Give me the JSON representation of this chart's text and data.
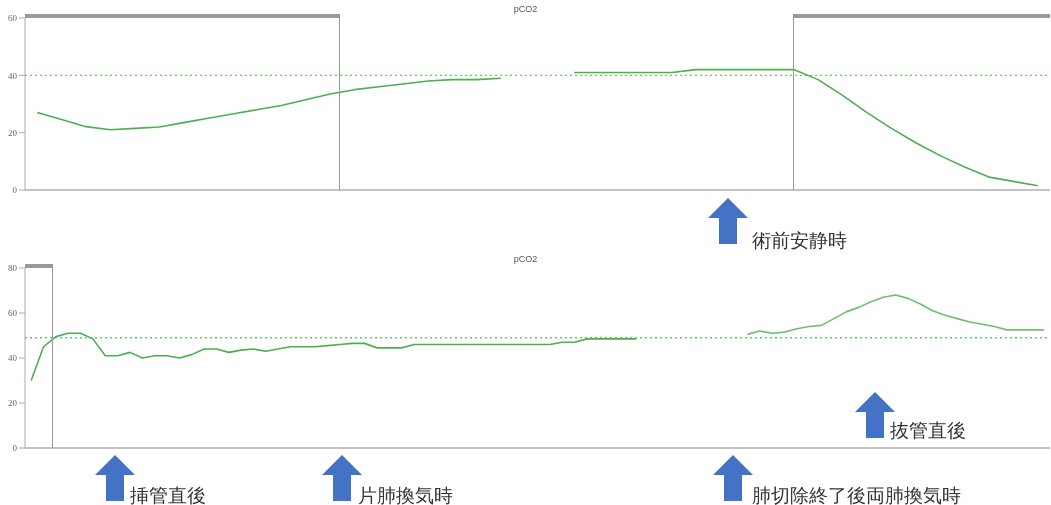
{
  "chart_data": [
    {
      "type": "line",
      "title": "pCO2",
      "categories": [
        null,
        null,
        null,
        null,
        null,
        null,
        null,
        null,
        null,
        null,
        null,
        null,
        null,
        null,
        null,
        null,
        null,
        null,
        null,
        null,
        null,
        null,
        null,
        null,
        null,
        null,
        null,
        null,
        null,
        null,
        null,
        null,
        null,
        null,
        null,
        null,
        null,
        null,
        null,
        null,
        null,
        null
      ],
      "series": [
        {
          "color": "#4caf50",
          "values": [
            27,
            24.6,
            22.1,
            21,
            21.5,
            22,
            23.5,
            25,
            26.5,
            28,
            29.5,
            31.5,
            33.5,
            35,
            36,
            37,
            38,
            38.5,
            38.5,
            39,
            null,
            null,
            41,
            41,
            41,
            41,
            41,
            42,
            42,
            42,
            42,
            42,
            38.5,
            33,
            27,
            21.5,
            16.5,
            12,
            8,
            4.5,
            3,
            1.5
          ]
        }
      ],
      "ylim": [
        0,
        60
      ],
      "yticks": [
        0,
        20,
        40,
        60
      ],
      "tick_labels": "y",
      "ref_lines": [
        {
          "axis": "y",
          "value": 40,
          "color": "#66cc66",
          "line_style": "dotted"
        }
      ],
      "annotations": [
        "術前安静時"
      ]
    },
    {
      "type": "line",
      "title": "pCO2",
      "categories": [
        null,
        null,
        null,
        null,
        null,
        null,
        null,
        null,
        null,
        null,
        null,
        null,
        null,
        null,
        null,
        null,
        null,
        null,
        null,
        null,
        null,
        null,
        null,
        null,
        null,
        null,
        null,
        null,
        null,
        null,
        null,
        null,
        null,
        null,
        null,
        null,
        null,
        null,
        null,
        null,
        null,
        null,
        null,
        null,
        null,
        null,
        null,
        null,
        null,
        null,
        null,
        null,
        null,
        null,
        null,
        null,
        null,
        null,
        null,
        null,
        null,
        null,
        null,
        null,
        null,
        null,
        null,
        null,
        null,
        null,
        null,
        null,
        null,
        null,
        null,
        null,
        null,
        null,
        null,
        null,
        null,
        null,
        null
      ],
      "series": [
        {
          "color": "#4caf50",
          "values": [
            30,
            45,
            49.5,
            51,
            51,
            48.5,
            41,
            41,
            42.5,
            40,
            41,
            41,
            40,
            41.5,
            44,
            44,
            42.5,
            43.5,
            44,
            43,
            44,
            45,
            45,
            45,
            45.5,
            46,
            46.5,
            46.5,
            44.5,
            44.5,
            44.5,
            46,
            46,
            46,
            46,
            46,
            46,
            46,
            46,
            46,
            46,
            46,
            46,
            47,
            47,
            48.5,
            48.5,
            48.5,
            48.5,
            48.5,
            null,
            null,
            null,
            null,
            null,
            null,
            null,
            null,
            null,
            null,
            null,
            null,
            null,
            null,
            null,
            null,
            null,
            null,
            null,
            null,
            null,
            null,
            null,
            null,
            null,
            null,
            null,
            null,
            null,
            null,
            null,
            null,
            null
          ]
        },
        {
          "color": "#6cc070",
          "values": [
            null,
            null,
            null,
            null,
            null,
            null,
            null,
            null,
            null,
            null,
            null,
            null,
            null,
            null,
            null,
            null,
            null,
            null,
            null,
            null,
            null,
            null,
            null,
            null,
            null,
            null,
            null,
            null,
            null,
            null,
            null,
            null,
            null,
            null,
            null,
            null,
            null,
            null,
            null,
            null,
            null,
            null,
            null,
            null,
            null,
            null,
            null,
            null,
            null,
            null,
            null,
            null,
            null,
            null,
            null,
            null,
            null,
            null,
            50.5,
            52,
            51,
            51.5,
            53,
            54,
            54.5,
            57.5,
            60.5,
            62.5,
            65,
            67,
            68,
            66.5,
            64,
            61,
            59,
            57.5,
            56,
            55,
            54,
            52.5,
            52.5,
            52.5,
            52.5
          ]
        }
      ],
      "ylim": [
        0,
        80
      ],
      "yticks": [
        0,
        20,
        40,
        60,
        80
      ],
      "tick_labels": "y",
      "ref_lines": [
        {
          "axis": "y",
          "value": 49,
          "color": "#66cc66",
          "line_style": "dotted"
        }
      ],
      "annotations": [
        "抜管直後",
        "挿管直後",
        "片肺換気時",
        "肺切除終了後両肺換気時"
      ]
    }
  ]
}
